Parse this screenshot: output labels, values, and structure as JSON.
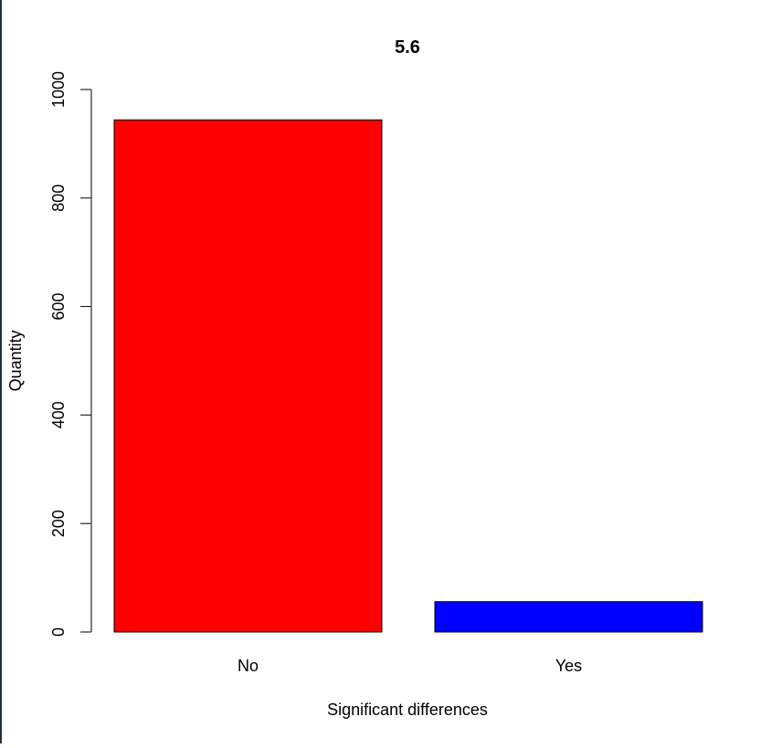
{
  "chart_data": {
    "type": "bar",
    "title": "5.6",
    "xlabel": "Significant differences",
    "ylabel": "Quantity",
    "categories": [
      "No",
      "Yes"
    ],
    "values": [
      944,
      56
    ],
    "colors": [
      "#ff0000",
      "#0000ff"
    ],
    "ylim": [
      0,
      1000
    ],
    "yticks": [
      0,
      200,
      400,
      600,
      800,
      1000
    ],
    "grid": false,
    "legend": "none"
  }
}
